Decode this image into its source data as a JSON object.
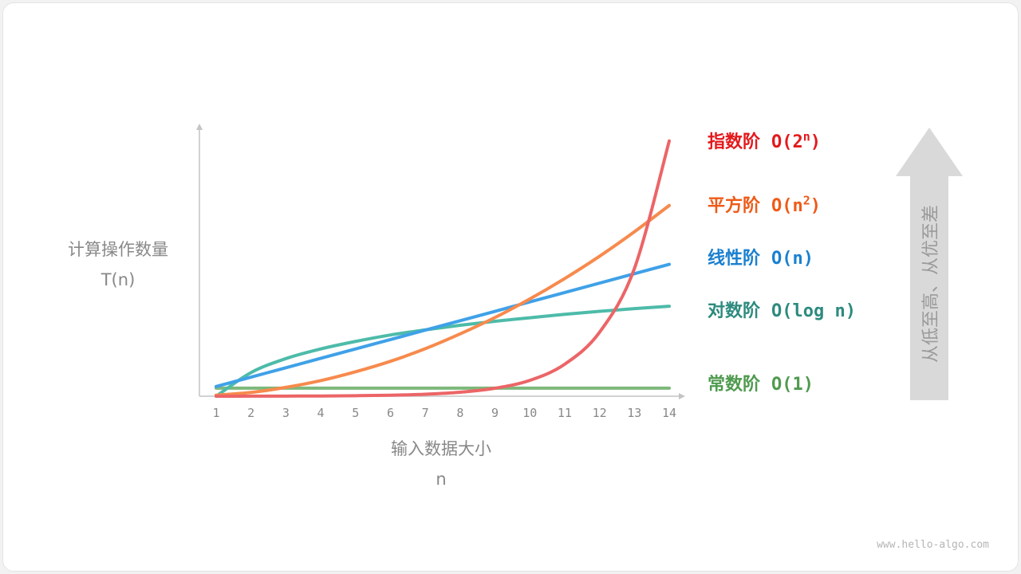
{
  "chart_data": {
    "type": "line",
    "xlabel": "输入数据大小",
    "xlabel_sub": "n",
    "ylabel": "计算操作数量",
    "ylabel_sub": "T(n)",
    "x": [
      1,
      2,
      3,
      4,
      5,
      6,
      7,
      8,
      9,
      10,
      11,
      12,
      13,
      14
    ],
    "xlim": [
      1,
      14
    ],
    "ylim": [
      0,
      100
    ],
    "grid": false,
    "series": [
      {
        "name": "指数阶",
        "notation": "O(2",
        "sup": "n",
        "close": ")",
        "color": "#ec6567",
        "label_color": "#e3191c",
        "values": [
          0.01,
          0.02,
          0.05,
          0.09,
          0.19,
          0.37,
          0.74,
          1.48,
          2.97,
          5.9,
          11.9,
          23.8,
          47.5,
          95.0
        ]
      },
      {
        "name": "平方阶",
        "notation": "O(n",
        "sup": "2",
        "close": ")",
        "color": "#f78a4d",
        "label_color": "#ef5a17",
        "values": [
          0.4,
          1.4,
          3.3,
          5.8,
          9.1,
          13.0,
          17.7,
          23.2,
          29.3,
          36.2,
          43.8,
          52.1,
          61.2,
          71.0
        ]
      },
      {
        "name": "线性阶",
        "notation": "O(n)",
        "sup": "",
        "close": "",
        "color": "#3fa1e8",
        "label_color": "#1a80d0",
        "values": [
          3.6,
          7.1,
          10.6,
          14.1,
          17.6,
          21.1,
          24.6,
          28.1,
          31.6,
          35.1,
          38.6,
          42.1,
          45.6,
          49.1
        ]
      },
      {
        "name": "对数阶",
        "notation": "O(log n)",
        "sup": "",
        "close": "",
        "color": "#4dbba9",
        "label_color": "#2d8a7e",
        "values": [
          0,
          8.8,
          14.0,
          17.6,
          20.4,
          22.8,
          24.7,
          26.4,
          27.9,
          29.2,
          30.5,
          31.6,
          32.6,
          33.5
        ]
      },
      {
        "name": "常数阶",
        "notation": "O(1)",
        "sup": "",
        "close": "",
        "color": "#7db87b",
        "label_color": "#4f9a4f",
        "values": [
          3,
          3,
          3,
          3,
          3,
          3,
          3,
          3,
          3,
          3,
          3,
          3,
          3,
          3
        ]
      }
    ],
    "arrow_text": "从低至高、从优至差",
    "arrow_color": "#d9d9d9",
    "axis_color": "#c4c4c4"
  },
  "watermark": "www.hello-algo.com"
}
